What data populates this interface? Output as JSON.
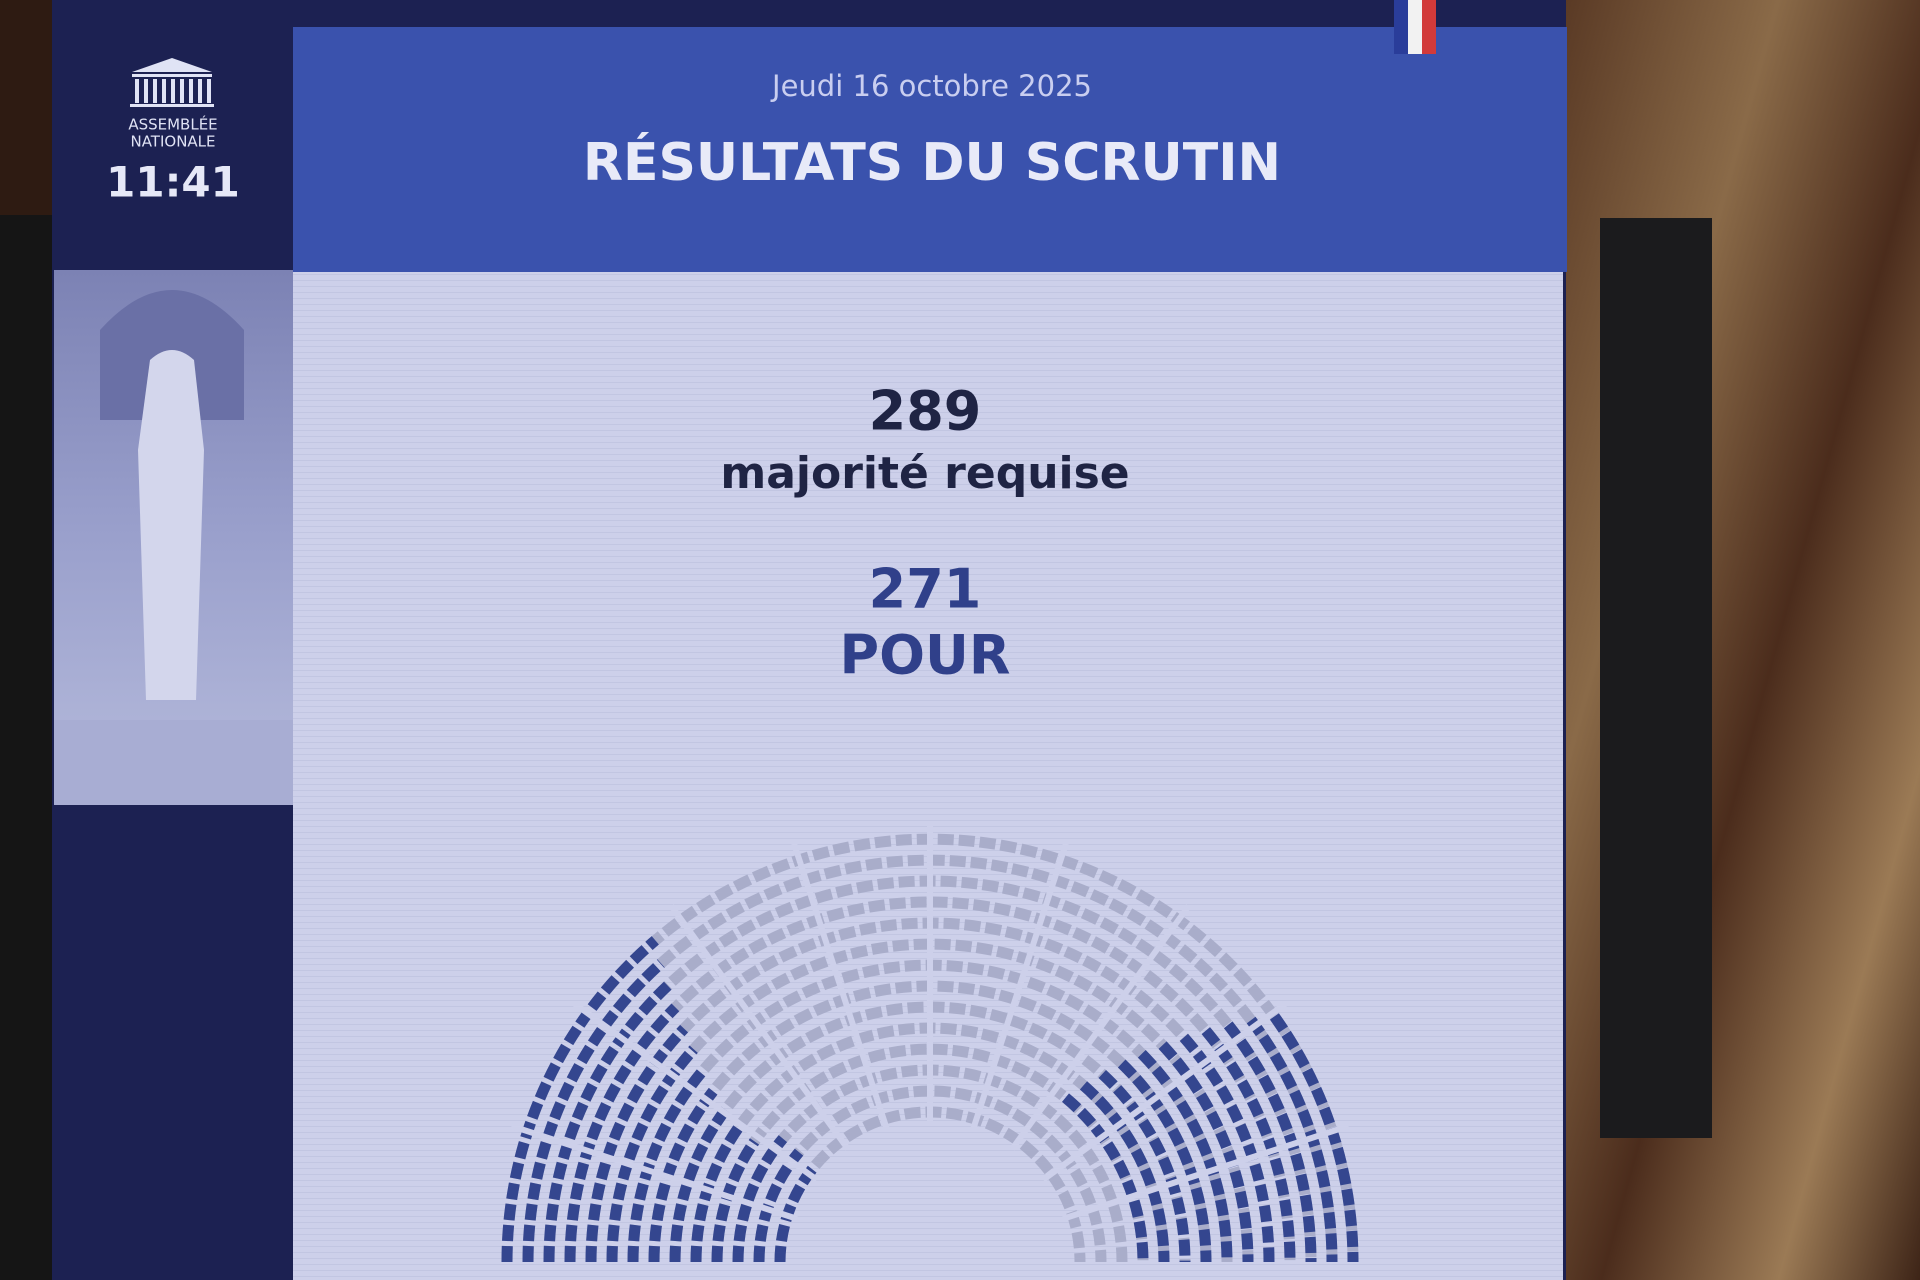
{
  "header": {
    "date": "Jeudi 16 octobre 2025",
    "title": "RÉSULTATS DU SCRUTIN"
  },
  "sidebar": {
    "logo_line_1": "ASSEMBLÉE",
    "logo_line_2": "NATIONALE",
    "time": "11:41"
  },
  "results": {
    "majority_number": "289",
    "majority_label": "majorité requise",
    "votes_number": "271",
    "votes_label": "POUR"
  }
}
